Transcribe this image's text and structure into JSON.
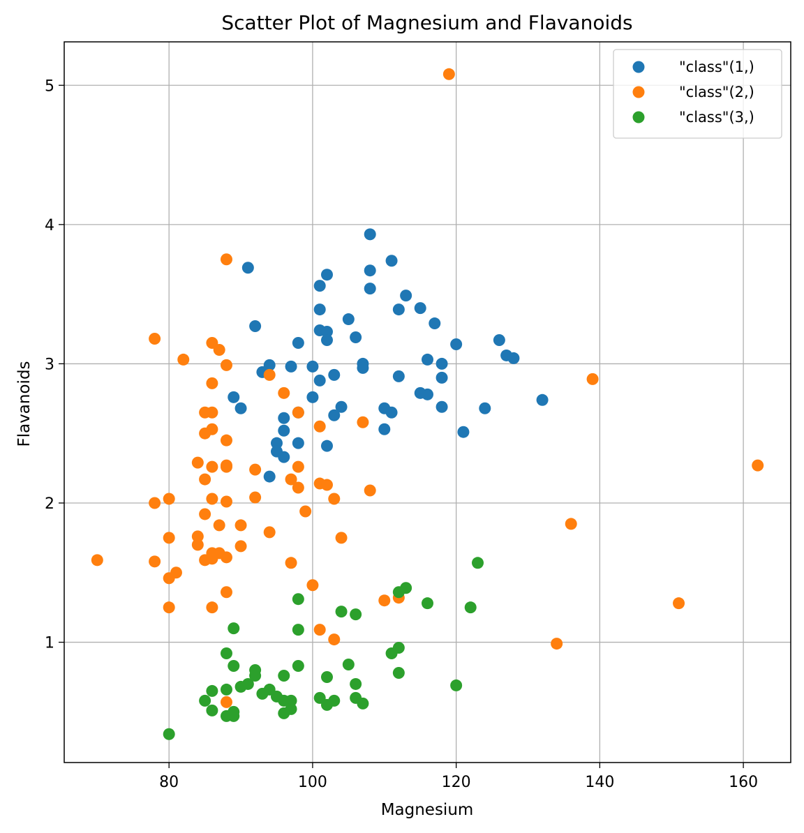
{
  "chart_data": {
    "type": "scatter",
    "title": "Scatter Plot of Magnesium and Flavanoids",
    "xlabel": "Magnesium",
    "ylabel": "Flavanoids",
    "xlim": [
      65.4,
      166.6
    ],
    "ylim": [
      0.136,
      5.312
    ],
    "xticks": [
      80,
      100,
      120,
      140,
      160
    ],
    "yticks": [
      1,
      2,
      3,
      4,
      5
    ],
    "grid": true,
    "legend_position": "top-right",
    "series": [
      {
        "name": "\"class\"(1,)",
        "color": "#1f77b4",
        "points": [
          [
            108,
            3.93
          ],
          [
            111,
            3.74
          ],
          [
            91,
            3.69
          ],
          [
            102,
            3.64
          ],
          [
            108,
            3.67
          ],
          [
            108,
            3.54
          ],
          [
            101,
            3.56
          ],
          [
            113,
            3.49
          ],
          [
            101,
            3.39
          ],
          [
            112,
            3.39
          ],
          [
            115,
            3.4
          ],
          [
            105,
            3.32
          ],
          [
            92,
            3.27
          ],
          [
            117,
            3.29
          ],
          [
            101,
            3.24
          ],
          [
            102,
            3.23
          ],
          [
            106,
            3.19
          ],
          [
            102,
            3.17
          ],
          [
            98,
            3.15
          ],
          [
            120,
            3.14
          ],
          [
            126,
            3.17
          ],
          [
            127,
            3.06
          ],
          [
            128,
            3.04
          ],
          [
            116,
            3.03
          ],
          [
            118,
            3.0
          ],
          [
            107,
            3.0
          ],
          [
            94,
            2.99
          ],
          [
            97,
            2.98
          ],
          [
            100,
            2.98
          ],
          [
            107,
            2.97
          ],
          [
            93,
            2.94
          ],
          [
            103,
            2.92
          ],
          [
            112,
            2.91
          ],
          [
            118,
            2.9
          ],
          [
            101,
            2.88
          ],
          [
            89,
            2.76
          ],
          [
            100,
            2.76
          ],
          [
            115,
            2.79
          ],
          [
            116,
            2.78
          ],
          [
            132,
            2.74
          ],
          [
            104,
            2.69
          ],
          [
            90,
            2.68
          ],
          [
            110,
            2.68
          ],
          [
            124,
            2.68
          ],
          [
            118,
            2.69
          ],
          [
            111,
            2.65
          ],
          [
            98,
            2.65
          ],
          [
            103,
            2.63
          ],
          [
            96,
            2.61
          ],
          [
            96,
            2.52
          ],
          [
            110,
            2.53
          ],
          [
            121,
            2.51
          ],
          [
            95,
            2.43
          ],
          [
            98,
            2.43
          ],
          [
            102,
            2.41
          ],
          [
            95,
            2.37
          ],
          [
            96,
            2.33
          ],
          [
            94,
            2.19
          ]
        ]
      },
      {
        "name": "\"class\"(2,)",
        "color": "#ff7f0e",
        "points": [
          [
            119,
            5.08
          ],
          [
            88,
            3.75
          ],
          [
            78,
            3.18
          ],
          [
            86,
            3.15
          ],
          [
            87,
            3.1
          ],
          [
            82,
            3.03
          ],
          [
            88,
            2.99
          ],
          [
            94,
            2.92
          ],
          [
            139,
            2.89
          ],
          [
            86,
            2.86
          ],
          [
            96,
            2.79
          ],
          [
            85,
            2.65
          ],
          [
            86,
            2.65
          ],
          [
            98,
            2.65
          ],
          [
            107,
            2.58
          ],
          [
            101,
            2.55
          ],
          [
            86,
            2.53
          ],
          [
            85,
            2.5
          ],
          [
            88,
            2.45
          ],
          [
            84,
            2.29
          ],
          [
            88,
            2.27
          ],
          [
            86,
            2.26
          ],
          [
            88,
            2.26
          ],
          [
            98,
            2.26
          ],
          [
            162,
            2.27
          ],
          [
            92,
            2.24
          ],
          [
            85,
            2.17
          ],
          [
            97,
            2.17
          ],
          [
            101,
            2.14
          ],
          [
            102,
            2.13
          ],
          [
            98,
            2.11
          ],
          [
            108,
            2.09
          ],
          [
            80,
            2.03
          ],
          [
            86,
            2.03
          ],
          [
            92,
            2.04
          ],
          [
            103,
            2.03
          ],
          [
            78,
            2.0
          ],
          [
            88,
            2.01
          ],
          [
            99,
            1.94
          ],
          [
            85,
            1.92
          ],
          [
            87,
            1.84
          ],
          [
            90,
            1.84
          ],
          [
            136,
            1.85
          ],
          [
            94,
            1.79
          ],
          [
            80,
            1.75
          ],
          [
            84,
            1.76
          ],
          [
            104,
            1.75
          ],
          [
            84,
            1.7
          ],
          [
            90,
            1.69
          ],
          [
            86,
            1.64
          ],
          [
            87,
            1.64
          ],
          [
            85,
            1.59
          ],
          [
            86,
            1.6
          ],
          [
            88,
            1.61
          ],
          [
            70,
            1.59
          ],
          [
            78,
            1.58
          ],
          [
            97,
            1.57
          ],
          [
            81,
            1.5
          ],
          [
            80,
            1.46
          ],
          [
            100,
            1.41
          ],
          [
            88,
            1.36
          ],
          [
            112,
            1.32
          ],
          [
            110,
            1.3
          ],
          [
            151,
            1.28
          ],
          [
            80,
            1.25
          ],
          [
            86,
            1.25
          ],
          [
            101,
            1.09
          ],
          [
            103,
            1.02
          ],
          [
            134,
            0.99
          ],
          [
            88,
            0.57
          ]
        ]
      },
      {
        "name": "\"class\"(3,)",
        "color": "#2ca02c",
        "points": [
          [
            123,
            1.57
          ],
          [
            113,
            1.39
          ],
          [
            112,
            1.36
          ],
          [
            98,
            1.31
          ],
          [
            116,
            1.28
          ],
          [
            122,
            1.25
          ],
          [
            104,
            1.22
          ],
          [
            106,
            1.2
          ],
          [
            89,
            1.1
          ],
          [
            98,
            1.09
          ],
          [
            112,
            0.96
          ],
          [
            111,
            0.92
          ],
          [
            88,
            0.92
          ],
          [
            105,
            0.84
          ],
          [
            89,
            0.83
          ],
          [
            98,
            0.83
          ],
          [
            92,
            0.8
          ],
          [
            112,
            0.78
          ],
          [
            92,
            0.76
          ],
          [
            96,
            0.76
          ],
          [
            102,
            0.75
          ],
          [
            106,
            0.7
          ],
          [
            91,
            0.7
          ],
          [
            120,
            0.69
          ],
          [
            90,
            0.68
          ],
          [
            86,
            0.65
          ],
          [
            88,
            0.66
          ],
          [
            94,
            0.66
          ],
          [
            93,
            0.63
          ],
          [
            95,
            0.61
          ],
          [
            101,
            0.6
          ],
          [
            106,
            0.6
          ],
          [
            85,
            0.58
          ],
          [
            96,
            0.58
          ],
          [
            97,
            0.58
          ],
          [
            103,
            0.58
          ],
          [
            107,
            0.56
          ],
          [
            102,
            0.55
          ],
          [
            86,
            0.51
          ],
          [
            97,
            0.52
          ],
          [
            89,
            0.5
          ],
          [
            96,
            0.49
          ],
          [
            88,
            0.47
          ],
          [
            89,
            0.47
          ],
          [
            80,
            0.34
          ]
        ]
      }
    ]
  }
}
